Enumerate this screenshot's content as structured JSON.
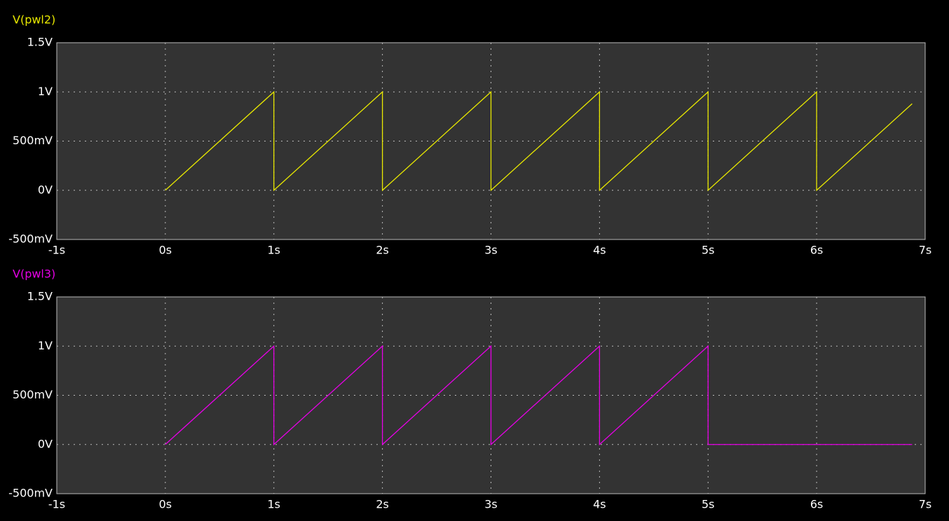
{
  "chart_data": [
    {
      "type": "line",
      "x": [
        0,
        1,
        1,
        2,
        2,
        3,
        3,
        4,
        4,
        5,
        5,
        6,
        6,
        6.88
      ],
      "series": [
        {
          "name": "V(pwl2)",
          "color": "#e8e800",
          "values": [
            0,
            1,
            0,
            1,
            0,
            1,
            0,
            1,
            0,
            1,
            0,
            1,
            0,
            0.88
          ]
        }
      ],
      "xlim": [
        -1,
        7
      ],
      "ylim": [
        -0.5,
        1.5
      ],
      "xticks": [
        {
          "value": -1,
          "label": "-1s"
        },
        {
          "value": 0,
          "label": "0s"
        },
        {
          "value": 1,
          "label": "1s"
        },
        {
          "value": 2,
          "label": "2s"
        },
        {
          "value": 3,
          "label": "3s"
        },
        {
          "value": 4,
          "label": "4s"
        },
        {
          "value": 5,
          "label": "5s"
        },
        {
          "value": 6,
          "label": "6s"
        },
        {
          "value": 7,
          "label": "7s"
        }
      ],
      "yticks": [
        {
          "value": -0.5,
          "label": "-500mV"
        },
        {
          "value": 0,
          "label": "0V"
        },
        {
          "value": 0.5,
          "label": "500mV"
        },
        {
          "value": 1,
          "label": "1V"
        },
        {
          "value": 1.5,
          "label": "1.5V"
        }
      ],
      "grid": true
    },
    {
      "type": "line",
      "x": [
        0,
        1,
        1,
        2,
        2,
        3,
        3,
        4,
        4,
        5,
        5,
        6.88
      ],
      "series": [
        {
          "name": "V(pwl3)",
          "color": "#e600e6",
          "values": [
            0,
            1,
            0,
            1,
            0,
            1,
            0,
            1,
            0,
            1,
            0,
            0
          ]
        }
      ],
      "xlim": [
        -1,
        7
      ],
      "ylim": [
        -0.5,
        1.5
      ],
      "xticks": [
        {
          "value": -1,
          "label": "-1s"
        },
        {
          "value": 0,
          "label": "0s"
        },
        {
          "value": 1,
          "label": "1s"
        },
        {
          "value": 2,
          "label": "2s"
        },
        {
          "value": 3,
          "label": "3s"
        },
        {
          "value": 4,
          "label": "4s"
        },
        {
          "value": 5,
          "label": "5s"
        },
        {
          "value": 6,
          "label": "6s"
        },
        {
          "value": 7,
          "label": "7s"
        }
      ],
      "yticks": [
        {
          "value": -0.5,
          "label": "-500mV"
        },
        {
          "value": 0,
          "label": "0V"
        },
        {
          "value": 0.5,
          "label": "500mV"
        },
        {
          "value": 1,
          "label": "1V"
        },
        {
          "value": 1.5,
          "label": "1.5V"
        }
      ],
      "grid": true
    }
  ]
}
